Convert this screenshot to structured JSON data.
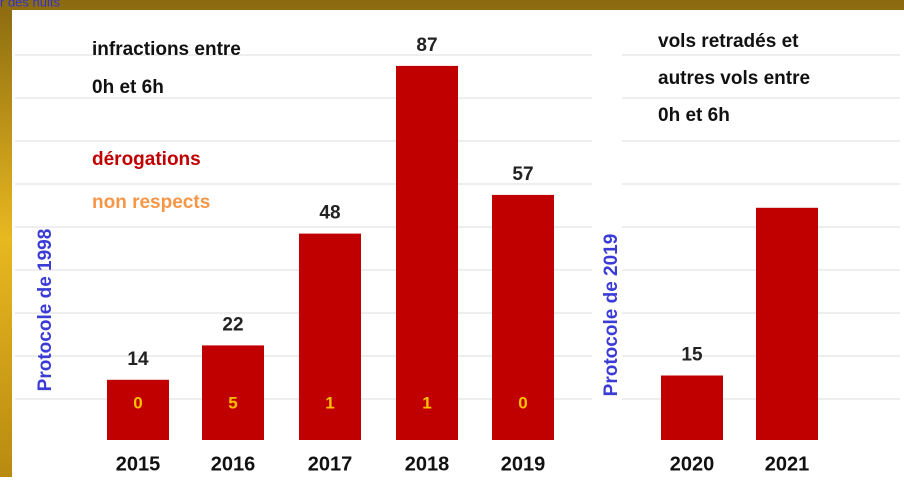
{
  "header": {
    "title": "r des nuits"
  },
  "chart_data": [
    {
      "type": "bar",
      "annotation": [
        "infractions entre",
        "0h et 6h"
      ],
      "y_label": "Protocole de 1998",
      "categories": [
        "2015",
        "2016",
        "2017",
        "2018",
        "2019"
      ],
      "ylim": [
        0,
        100
      ],
      "series": [
        {
          "name": "dérogations",
          "color": "#c00000",
          "values": [
            14,
            22,
            48,
            87,
            57
          ]
        },
        {
          "name": "non respects",
          "color": "#f79646",
          "label_color": "#ffc000",
          "values": [
            0,
            5,
            1,
            1,
            0
          ]
        }
      ]
    },
    {
      "type": "bar",
      "annotation": [
        "vols retradés et",
        "autres vols entre",
        "0h et 6h"
      ],
      "y_label": "Protocole de 2019",
      "categories": [
        "2020",
        "2021"
      ],
      "ylim": [
        0,
        100
      ],
      "series": [
        {
          "color": "#c00000",
          "values": [
            15,
            54
          ],
          "value_labels": [
            "15",
            null
          ]
        }
      ]
    }
  ]
}
